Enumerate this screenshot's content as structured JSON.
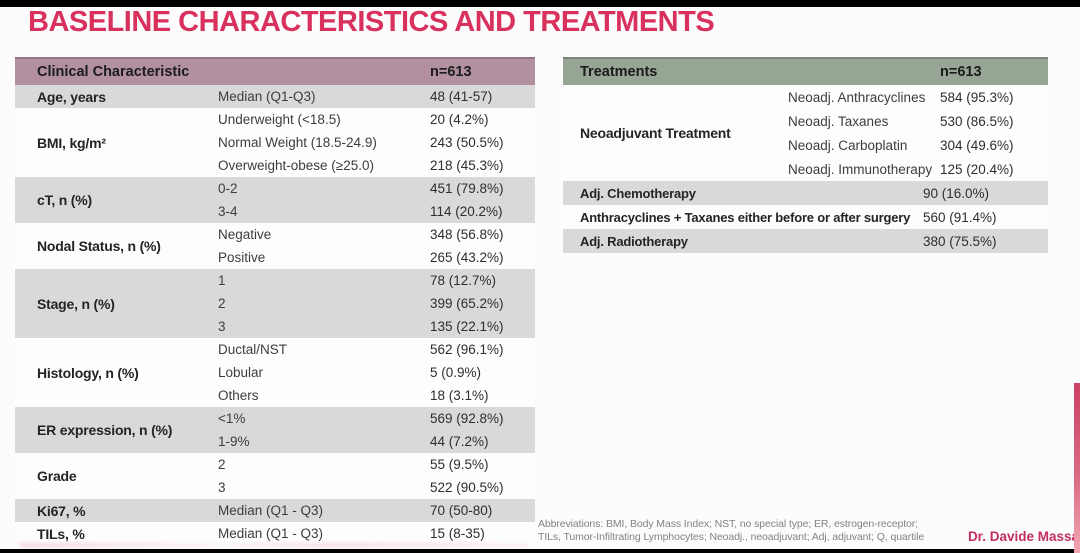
{
  "title": "BASELINE CHARACTERISTICS AND TREATMENTS",
  "colors": {
    "title_accent": "#d9315e",
    "clinical_header_bg": "#b2909f",
    "treatments_header_bg": "#97a594",
    "row_gray": "#d9d9d9",
    "author_accent": "#c42e5e"
  },
  "clinical_table": {
    "header": {
      "label": "Clinical Characteristic",
      "n": "n=613"
    },
    "groups": [
      {
        "label": "Age, years",
        "shade": "gray",
        "rows": [
          {
            "sub": "Median (Q1-Q3)",
            "value": "48 (41-57)"
          }
        ]
      },
      {
        "label": "BMI, kg/m²",
        "shade": "white",
        "rows": [
          {
            "sub": "Underweight (<18.5)",
            "value": "20 (4.2%)"
          },
          {
            "sub": "Normal Weight (18.5-24.9)",
            "value": "243 (50.5%)"
          },
          {
            "sub": "Overweight-obese (≥25.0)",
            "value": "218 (45.3%)"
          }
        ]
      },
      {
        "label": "cT, n (%)",
        "shade": "gray",
        "rows": [
          {
            "sub": "0-2",
            "value": "451 (79.8%)"
          },
          {
            "sub": "3-4",
            "value": "114 (20.2%)"
          }
        ]
      },
      {
        "label": "Nodal Status, n (%)",
        "shade": "white",
        "rows": [
          {
            "sub": "Negative",
            "value": "348 (56.8%)"
          },
          {
            "sub": "Positive",
            "value": "265 (43.2%)"
          }
        ]
      },
      {
        "label": "Stage, n (%)",
        "shade": "gray",
        "rows": [
          {
            "sub": "1",
            "value": "78 (12.7%)"
          },
          {
            "sub": "2",
            "value": "399 (65.2%)"
          },
          {
            "sub": "3",
            "value": "135 (22.1%)"
          }
        ]
      },
      {
        "label": "Histology, n (%)",
        "shade": "white",
        "rows": [
          {
            "sub": "Ductal/NST",
            "value": "562 (96.1%)"
          },
          {
            "sub": "Lobular",
            "value": "5 (0.9%)"
          },
          {
            "sub": "Others",
            "value": "18 (3.1%)"
          }
        ]
      },
      {
        "label": "ER expression, n (%)",
        "shade": "gray",
        "rows": [
          {
            "sub": "<1%",
            "value": "569 (92.8%)"
          },
          {
            "sub": "1-9%",
            "value": "44 (7.2%)"
          }
        ]
      },
      {
        "label": "Grade",
        "shade": "white",
        "rows": [
          {
            "sub": "2",
            "value": "55 (9.5%)"
          },
          {
            "sub": "3",
            "value": "522 (90.5%)"
          }
        ]
      },
      {
        "label": "Ki67, %",
        "shade": "gray",
        "rows": [
          {
            "sub": "Median (Q1 - Q3)",
            "value": "70 (50-80)"
          }
        ]
      },
      {
        "label": "TILs, %",
        "shade": "white",
        "rows": [
          {
            "sub": "Median (Q1 - Q3)",
            "value": "15 (8-35)"
          }
        ]
      }
    ]
  },
  "treatments_table": {
    "header": {
      "label": "Treatments",
      "n": "n=613"
    },
    "groups": [
      {
        "label": "Neoadjuvant Treatment",
        "shade": "white",
        "rows": [
          {
            "sub": "Neoadj. Anthracyclines",
            "value": "584 (95.3%)"
          },
          {
            "sub": "Neoadj. Taxanes",
            "value": "530 (86.5%)"
          },
          {
            "sub": "Neoadj. Carboplatin",
            "value": "304 (49.6%)"
          },
          {
            "sub": "Neoadj. Immunotherapy",
            "value": "125 (20.4%)"
          }
        ]
      }
    ],
    "rows": [
      {
        "label": "Adj. Chemotherapy",
        "value": "90 (16.0%)",
        "shade": "gray"
      },
      {
        "label": "Anthracyclines + Taxanes either before or after surgery",
        "value": "560 (91.4%)",
        "shade": "white"
      },
      {
        "label": "Adj. Radiotherapy",
        "value": "380 (75.5%)",
        "shade": "gray"
      }
    ]
  },
  "footer": {
    "abbrev_line1": "Abbreviations: BMI, Body Mass Index; NST, no special type; ER, estrogen-receptor;",
    "abbrev_line2": "TILs, Tumor-Infiltrating Lymphocytes; Neoadj., neoadjuvant; Adj, adjuvant; Q, quartile",
    "author": "Dr. Davide Massa"
  }
}
